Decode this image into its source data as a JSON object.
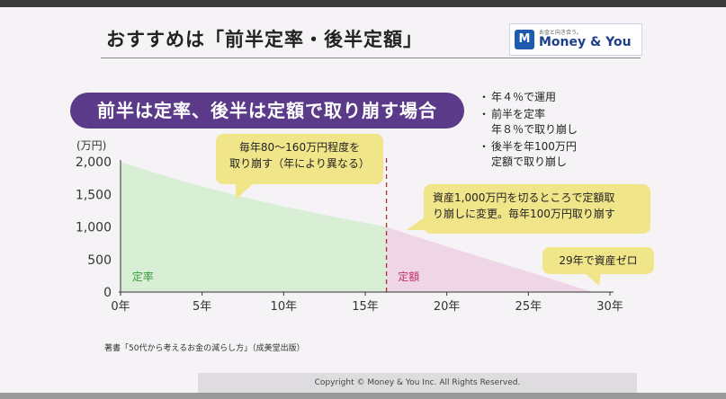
{
  "slide": {
    "title": "おすすめは「前半定率・後半定額」",
    "logo_tagline": "お金と向き合う。",
    "logo_name": "Money & You",
    "logo_mark": "M",
    "headline": "前半は定率、後半は定額で取り崩す場合",
    "notes": [
      {
        "line1": "年４％で運用",
        "line2": ""
      },
      {
        "line1": "前半を定率",
        "line2": "年８％で取り崩し"
      },
      {
        "line1": "後半を年100万円",
        "line2": "定額で取り崩し"
      }
    ],
    "callouts": [
      {
        "line1": "毎年80～160万円程度を",
        "line2": "取り崩す（年により異なる）"
      },
      {
        "line1": "資産1,000万円を切るところで定額取",
        "line2": "り崩しに変更。毎年100万円取り崩す"
      },
      {
        "line1": "29年で資産ゼロ",
        "line2": ""
      }
    ],
    "reference": "著書「50代から考えるお金の減らし方」（成美堂出版）",
    "copyright": "Copyright © Money & You Inc. All Rights Reserved."
  },
  "chart_data": {
    "type": "area",
    "ylabel": "(万円)",
    "xlabel": "",
    "xlim": [
      0,
      30
    ],
    "ylim": [
      0,
      2000
    ],
    "x_ticks": [
      0,
      5,
      10,
      15,
      20,
      25,
      30
    ],
    "x_tick_labels": [
      "0年",
      "5年",
      "10年",
      "15年",
      "20年",
      "25年",
      "30年"
    ],
    "y_ticks": [
      0,
      500,
      1000,
      1500,
      2000
    ],
    "y_tick_labels": [
      "0",
      "500",
      "1,000",
      "1,500",
      "2,000"
    ],
    "switch_year": 16.3,
    "series": [
      {
        "name": "定率",
        "color": "#d8efd6",
        "label_color": "#3a9a3a",
        "x": [
          0,
          2,
          4,
          6,
          8,
          10,
          12,
          14,
          16.3
        ],
        "y": [
          2000,
          1840,
          1690,
          1555,
          1430,
          1315,
          1210,
          1110,
          1000
        ]
      },
      {
        "name": "定額",
        "color": "#efd6e6",
        "label_color": "#c0306e",
        "x": [
          16.3,
          18,
          20,
          22,
          24,
          26,
          28,
          29
        ],
        "y": [
          1000,
          860,
          700,
          545,
          390,
          235,
          75,
          0
        ]
      }
    ],
    "divider_color": "#b03030"
  }
}
